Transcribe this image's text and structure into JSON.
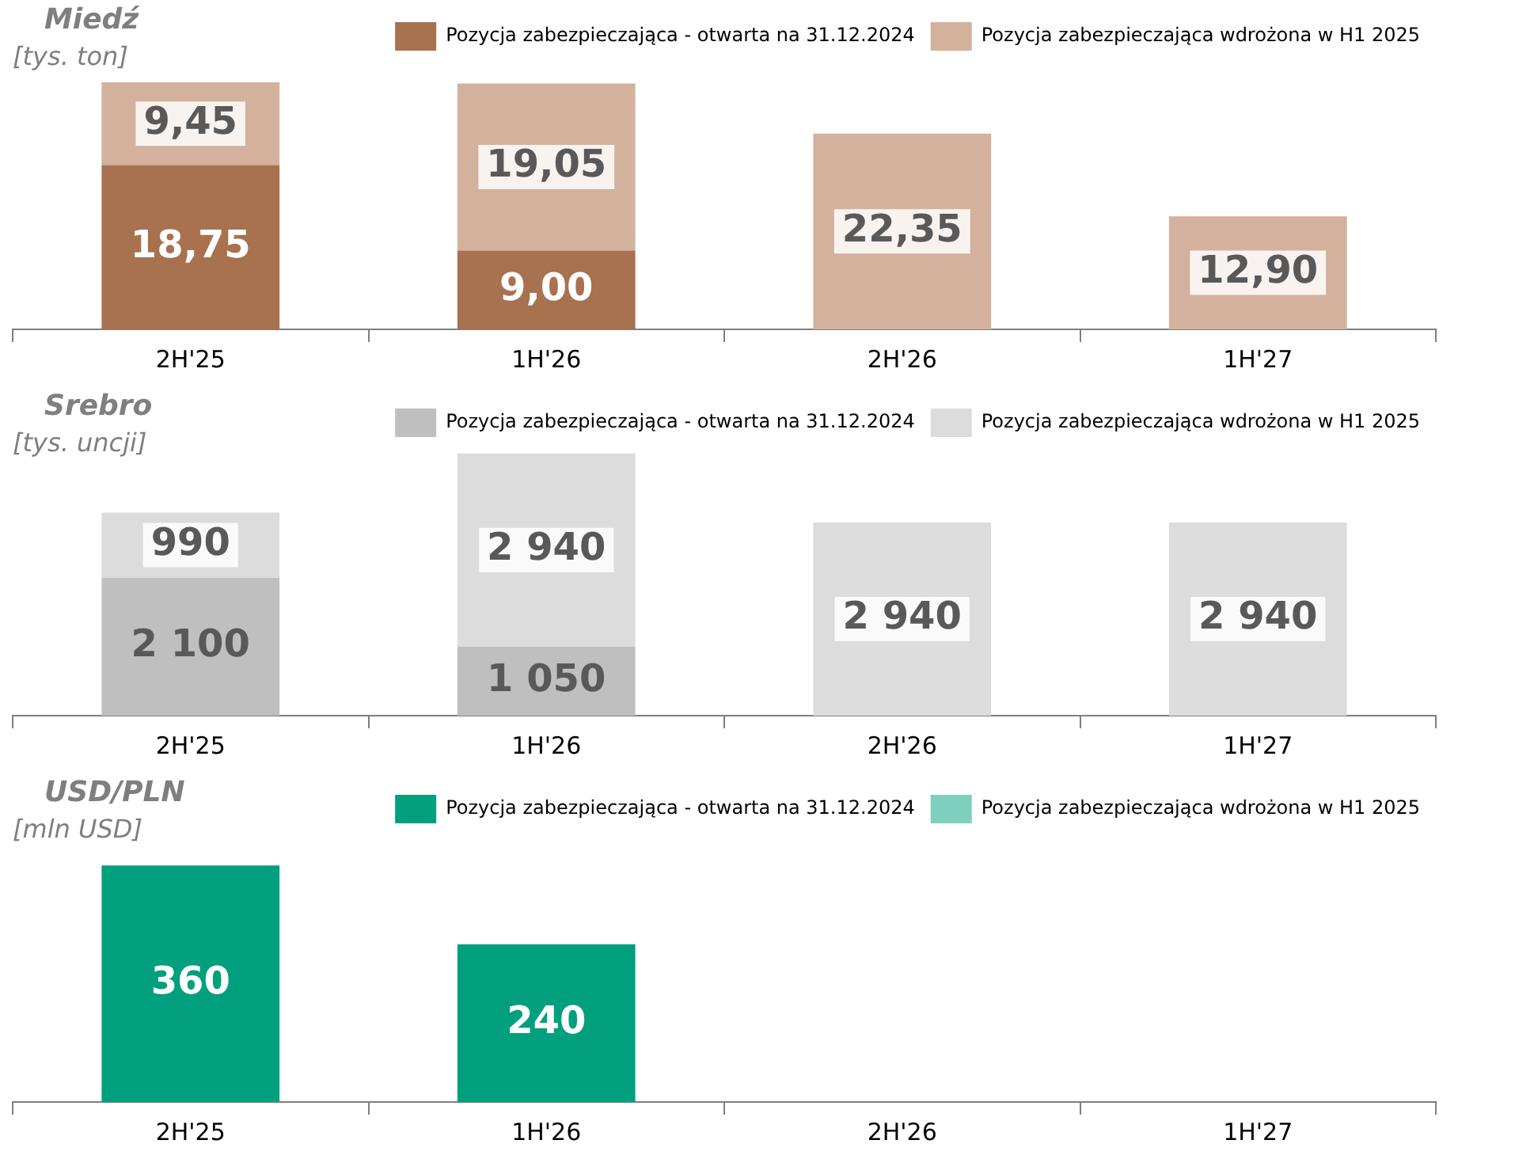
{
  "chart_data": [
    {
      "type": "bar",
      "title": "Miedź",
      "subtitle": "[tys. ton]",
      "categories": [
        "2H'25",
        "1H'26",
        "2H'26",
        "1H'27"
      ],
      "stacked": true,
      "legend": "top right",
      "series": [
        {
          "name": "Pozycja zabezpieczająca - otwarta na 31.12.2024",
          "color": "#a8714f",
          "values": [
            18.75,
            9.0,
            null,
            null
          ],
          "value_labels": [
            "18,75",
            "9,00",
            null,
            null
          ]
        },
        {
          "name": "Pozycja zabezpieczająca wdrożona w H1 2025",
          "color": "#d3b19c",
          "values": [
            9.45,
            19.05,
            22.35,
            12.9
          ],
          "value_labels": [
            "9,45",
            "19,05",
            "22,35",
            "12,90"
          ]
        }
      ]
    },
    {
      "type": "bar",
      "title": "Srebro",
      "subtitle": "[tys. uncji]",
      "categories": [
        "2H'25",
        "1H'26",
        "2H'26",
        "1H'27"
      ],
      "stacked": true,
      "legend": "top right",
      "series": [
        {
          "name": "Pozycja zabezpieczająca - otwarta na 31.12.2024",
          "color": "#bfbfbf",
          "values": [
            2100,
            1050,
            null,
            null
          ],
          "value_labels": [
            "2 100",
            "1 050",
            null,
            null
          ]
        },
        {
          "name": "Pozycja zabezpieczająca wdrożona w H1 2025",
          "color": "#dcdcdc",
          "values": [
            990,
            2940,
            2940,
            2940
          ],
          "value_labels": [
            "990",
            "2 940",
            "2 940",
            "2 940"
          ]
        }
      ]
    },
    {
      "type": "bar",
      "title": "USD/PLN",
      "subtitle": "[mln USD]",
      "categories": [
        "2H'25",
        "1H'26",
        "2H'26",
        "1H'27"
      ],
      "stacked": true,
      "legend": "top right",
      "series": [
        {
          "name": "Pozycja zabezpieczająca - otwarta na 31.12.2024",
          "color": "#00a07e",
          "values": [
            360,
            240,
            null,
            null
          ],
          "value_labels": [
            "360",
            "240",
            null,
            null
          ]
        },
        {
          "name": "Pozycja zabezpieczająca wdrożona w H1 2025",
          "color": "#7fcfbe",
          "values": [
            null,
            null,
            null,
            null
          ],
          "value_labels": [
            null,
            null,
            null,
            null
          ]
        }
      ]
    }
  ]
}
